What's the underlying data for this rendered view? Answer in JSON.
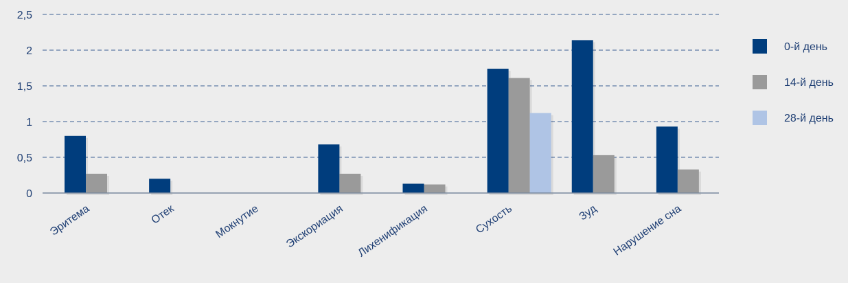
{
  "chart_data": {
    "type": "bar",
    "categories": [
      "Эритема",
      "Отек",
      "Мокнутие",
      "Экскориация",
      "Лихенификация",
      "Сухость",
      "Зуд",
      "Нарушение сна"
    ],
    "series": [
      {
        "name": "0-й день",
        "color": "#003d7d",
        "values": [
          0.8,
          0.2,
          0,
          0.68,
          0.13,
          1.74,
          2.14,
          0.93
        ]
      },
      {
        "name": "14-й день",
        "color": "#9a9a9a",
        "values": [
          0.27,
          0,
          0,
          0.27,
          0.12,
          1.61,
          0.53,
          0.33
        ]
      },
      {
        "name": "28-й день",
        "color": "#afc4e5",
        "values": [
          0,
          0,
          0,
          0,
          0,
          1.12,
          0,
          0
        ]
      }
    ],
    "yticks": [
      "0",
      "0,5",
      "1",
      "1,5",
      "2",
      "2,5"
    ],
    "ylim": [
      0,
      2.5
    ],
    "grid": true,
    "legend": "right"
  }
}
